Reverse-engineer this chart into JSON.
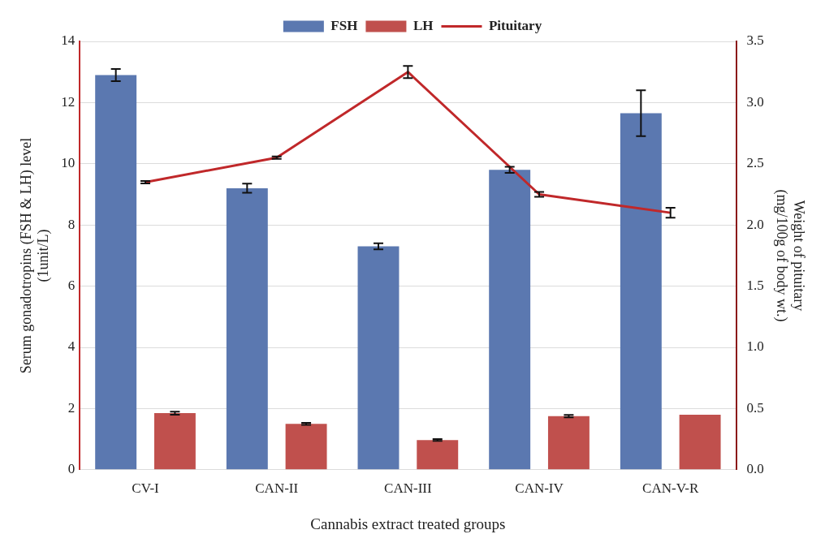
{
  "chart_data": {
    "type": "bar",
    "xlabel": "Cannabis extract treated groups",
    "ylabel": "Serum gonadotropins (FSH & LH) level (1unit/L)",
    "y2label": "Weight of pituitary (mg/100g of body wt.)",
    "categories": [
      "CV-I",
      "CAN-II",
      "CAN-III",
      "CAN-IV",
      "CAN-V-R"
    ],
    "series": [
      {
        "name": "FSH",
        "color": "#5b78b0",
        "values": [
          12.9,
          9.2,
          7.3,
          9.8,
          11.65
        ],
        "errors": [
          0.2,
          0.15,
          0.1,
          0.1,
          0.75
        ]
      },
      {
        "name": "LH",
        "color": "#c0504d",
        "values": [
          1.85,
          1.5,
          0.97,
          1.75,
          1.8
        ],
        "errors": [
          0.05,
          0.03,
          0.03,
          0.04,
          null
        ]
      },
      {
        "name": "Pituitary",
        "type": "line",
        "axis": "y2",
        "color": "#c0282a",
        "values": [
          2.35,
          2.55,
          3.25,
          2.25,
          2.1
        ],
        "errors": [
          0.01,
          0.01,
          0.05,
          0.02,
          0.04
        ]
      }
    ],
    "ylim": [
      0,
      14
    ],
    "yticks": [
      0,
      2,
      4,
      6,
      8,
      10,
      12,
      14
    ],
    "y2lim": [
      0,
      3.5
    ],
    "y2ticks": [
      {
        "value": 0,
        "label": "0.0"
      },
      {
        "value": 0.5,
        "label": "0.5"
      },
      {
        "value": 1,
        "label": "1.0"
      },
      {
        "value": 1.5,
        "label": "1.5"
      },
      {
        "value": 2,
        "label": "2.0"
      },
      {
        "value": 2.5,
        "label": "2.5"
      },
      {
        "value": 3,
        "label": "3.0"
      },
      {
        "value": 3.5,
        "label": "3.5"
      }
    ],
    "grid": "y",
    "legend": "top",
    "marker": "none",
    "line_style": "solid"
  }
}
